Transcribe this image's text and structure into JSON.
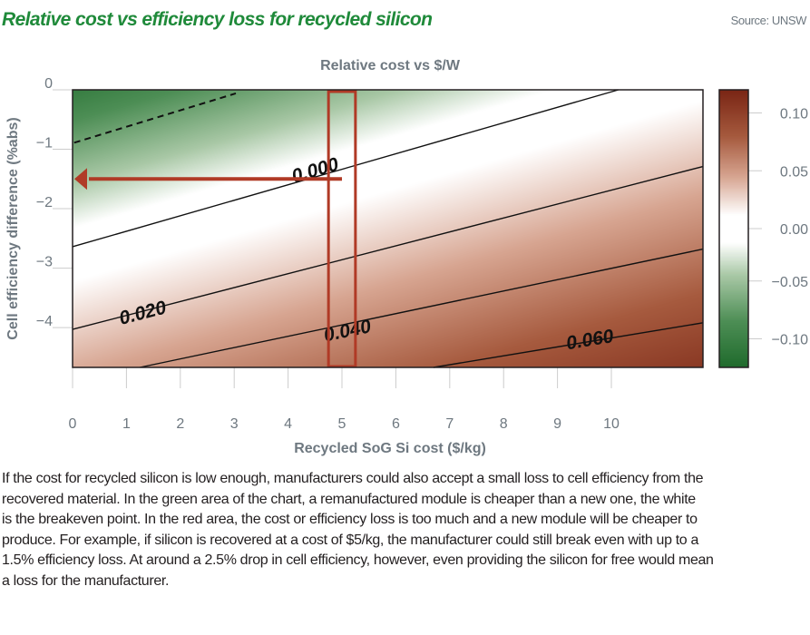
{
  "header": {
    "title": "Relative cost vs efficiency loss for recycled silicon",
    "source": "Source: UNSW"
  },
  "chart_data": {
    "type": "heatmap",
    "title": "Relative cost vs $/W",
    "xlabel": "Recycled SoG Si cost ($/kg)",
    "ylabel": "Cell efficiency difference (%abs)",
    "xlim": [
      0,
      11.7
    ],
    "ylim": [
      -4.67,
      0
    ],
    "xticks": [
      "0",
      "1",
      "2",
      "3",
      "4",
      "5",
      "6",
      "7",
      "8",
      "9",
      "10"
    ],
    "yticks": [
      {
        "value": 0,
        "label": "0"
      },
      {
        "value": -1,
        "label": "−1"
      },
      {
        "value": -2,
        "label": "−2"
      },
      {
        "value": -3,
        "label": "−3"
      },
      {
        "value": -4,
        "label": "−4"
      }
    ],
    "colorbar": {
      "range": [
        -0.12,
        0.12
      ],
      "ticks": [
        {
          "value": 0.1,
          "label": "0.10"
        },
        {
          "value": 0.05,
          "label": "0.05"
        },
        {
          "value": 0.0,
          "label": "0.00"
        },
        {
          "value": -0.05,
          "label": "−0.05"
        },
        {
          "value": -0.1,
          "label": "−0.10"
        }
      ],
      "colors": {
        "negative": "#1f6a2c",
        "zero": "#ffffff",
        "positive": "#7a2615"
      }
    },
    "contours": [
      {
        "level": "",
        "style": "dashed",
        "points": [
          [
            0.03,
            -0.89
          ],
          [
            3.03,
            -0.06
          ]
        ]
      },
      {
        "level": "0.000",
        "style": "solid",
        "points": [
          [
            0,
            -2.64
          ],
          [
            10.13,
            0
          ]
        ],
        "label_at": [
          4.5,
          -1.35
        ]
      },
      {
        "level": "0.020",
        "style": "solid",
        "points": [
          [
            0,
            -4.03
          ],
          [
            11.7,
            -1.29
          ]
        ],
        "label_at": [
          1.3,
          -3.75
        ]
      },
      {
        "level": "0.040",
        "style": "solid",
        "points": [
          [
            1.25,
            -4.67
          ],
          [
            11.7,
            -2.68
          ]
        ],
        "label_at": [
          5.1,
          -4.05
        ]
      },
      {
        "level": "0.060",
        "style": "solid",
        "points": [
          [
            6.7,
            -4.67
          ],
          [
            11.7,
            -3.92
          ]
        ],
        "label_at": [
          9.6,
          -4.2
        ]
      }
    ],
    "annotations": {
      "highlight_x_range": [
        4.75,
        5.25
      ],
      "arrow": {
        "from": [
          5,
          -1.5
        ],
        "to": [
          0,
          -1.5
        ]
      },
      "color": "#b03a26"
    }
  },
  "caption": {
    "lines": [
      "If the cost for recycled silicon is low enough, manufacturers could also accept a small loss to cell efficiency from the",
      "recovered material. In the green area of the chart, a remanufactured module is cheaper than a new one, the white",
      "is the breakeven point. In the red area, the cost or efficiency loss is too much and a new module will be cheaper to",
      "produce. For example, if silicon is recovered at a cost of $5/kg, the manufacturer could still break even with up to a",
      "1.5% efficiency loss. At around a 2.5% drop in cell efficiency, however, even providing the silicon for free would mean",
      "a loss for the manufacturer."
    ]
  }
}
